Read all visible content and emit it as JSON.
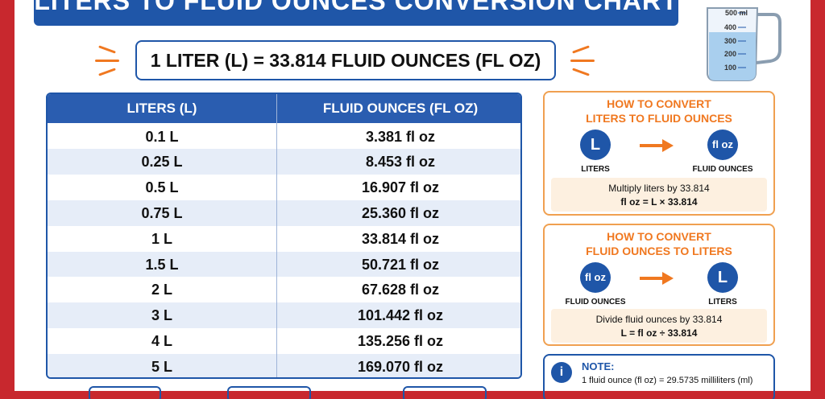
{
  "header": {
    "title": "LITERS TO FLUID OUNCES CONVERSION CHART"
  },
  "cup": {
    "labels": [
      "500 ml",
      "400",
      "300",
      "200",
      "100"
    ]
  },
  "formula": "1 LITER (L) = 33.814 FLUID OUNCES (FL OZ)",
  "table": {
    "columns": [
      "LITERS (L)",
      "FLUID OUNCES (FL OZ)"
    ],
    "rows": [
      [
        "0.1 L",
        "3.381 fl oz"
      ],
      [
        "0.25 L",
        "8.453 fl oz"
      ],
      [
        "0.5 L",
        "16.907 fl oz"
      ],
      [
        "0.75 L",
        "25.360 fl oz"
      ],
      [
        "1 L",
        "33.814 fl oz"
      ],
      [
        "1.5 L",
        "50.721 fl oz"
      ],
      [
        "2 L",
        "67.628 fl oz"
      ],
      [
        "3 L",
        "101.442 fl oz"
      ],
      [
        "4 L",
        "135.256 fl oz"
      ],
      [
        "5 L",
        "169.070 fl oz"
      ]
    ]
  },
  "panels": [
    {
      "title": [
        "HOW TO CONVERT",
        "LITERS TO FLUID OUNCES"
      ],
      "from_icon": "L",
      "from_label": "LITERS",
      "to_icon": "fl oz",
      "to_label": "FLUID OUNCES",
      "text": [
        "Multiply liters by 33.814",
        "fl oz = L × 33.814"
      ]
    },
    {
      "title": [
        "HOW TO CONVERT",
        "FLUID OUNCES TO LITERS"
      ],
      "from_icon": "fl oz",
      "from_label": "FLUID OUNCES",
      "to_icon": "L",
      "to_label": "LITERS",
      "text": [
        "Divide fluid ounces by 33.814",
        "L = fl oz ÷ 33.814"
      ]
    }
  ],
  "note": {
    "icon": "i",
    "title": "NOTE:",
    "text": "1 fluid ounce (fl oz) = 29.5735 milliliters (ml)"
  }
}
